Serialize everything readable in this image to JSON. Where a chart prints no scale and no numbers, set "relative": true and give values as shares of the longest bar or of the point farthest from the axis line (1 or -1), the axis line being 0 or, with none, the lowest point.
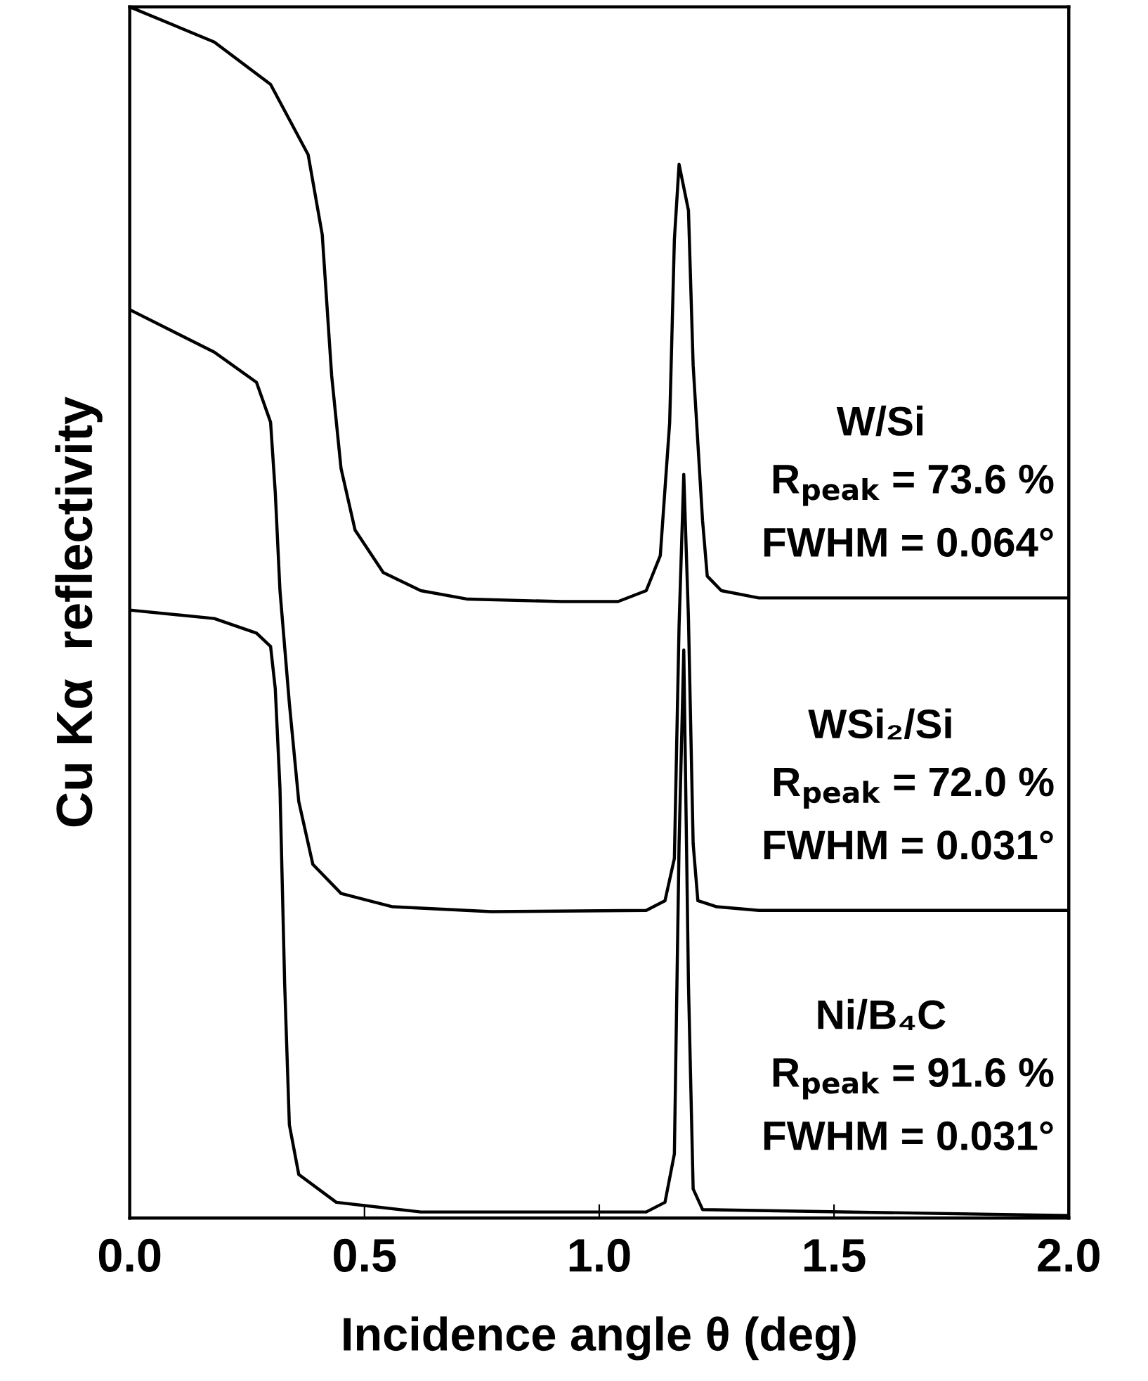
{
  "chart_data": {
    "type": "line",
    "relative": true,
    "xlabel": "Incidence angle θ (deg)",
    "ylabel": "Cu Kα  reflectivity",
    "xlim": [
      0,
      2.0
    ],
    "xticks": [
      {
        "value": 0,
        "label": "0.0"
      },
      0.5,
      {
        "value": 1,
        "label": "1.0"
      },
      1.5,
      {
        "value": 2,
        "label": "2.0"
      }
    ],
    "grid": false,
    "legend": false,
    "marker": "none",
    "line_style": "solid",
    "tick_labels": "x",
    "annotations": [
      "W/Si",
      "R$_{peak}$ = 73.6 %",
      "FWHM = 0.064°",
      "WSi₂/Si",
      "R$_{peak}$ = 72.0 %",
      "FWHM = 0.031°",
      "Ni/B₄C",
      "R$_{peak}$ = 91.6 %",
      "FWHM = 0.031°"
    ],
    "series": [
      {
        "color": "#000000",
        "x": [
          0,
          0.18,
          0.3,
          0.38,
          0.41,
          0.43,
          0.45,
          0.48,
          0.54,
          0.62,
          0.72,
          0.92,
          1.04,
          1.1,
          1.13,
          1.15,
          1.16,
          1.17,
          1.19,
          1.2,
          1.22,
          1.23,
          1.26,
          1.34,
          2.0
        ],
        "values": [
          1.0,
          0.971,
          0.936,
          0.878,
          0.812,
          0.696,
          0.619,
          0.568,
          0.533,
          0.518,
          0.511,
          0.509,
          0.509,
          0.518,
          0.547,
          0.657,
          0.808,
          0.87,
          0.832,
          0.704,
          0.576,
          0.53,
          0.518,
          0.512,
          0.512
        ]
      },
      {
        "color": "#000000",
        "x": [
          0,
          0.18,
          0.27,
          0.3,
          0.31,
          0.32,
          0.34,
          0.36,
          0.39,
          0.45,
          0.56,
          0.77,
          1.1,
          1.14,
          1.16,
          1.17,
          1.18,
          1.19,
          1.2,
          1.21,
          1.25,
          1.34,
          2.0
        ],
        "values": [
          0.75,
          0.715,
          0.69,
          0.657,
          0.599,
          0.518,
          0.425,
          0.344,
          0.292,
          0.268,
          0.257,
          0.253,
          0.254,
          0.262,
          0.297,
          0.489,
          0.614,
          0.495,
          0.309,
          0.262,
          0.257,
          0.254,
          0.254
        ]
      },
      {
        "color": "#000000",
        "x": [
          0,
          0.18,
          0.27,
          0.3,
          0.31,
          0.32,
          0.33,
          0.34,
          0.36,
          0.44,
          0.62,
          1.1,
          1.14,
          1.16,
          1.17,
          1.18,
          1.19,
          1.2,
          1.22,
          2.0
        ],
        "values": [
          0.502,
          0.495,
          0.483,
          0.472,
          0.437,
          0.355,
          0.193,
          0.077,
          0.036,
          0.013,
          0.005,
          0.005,
          0.013,
          0.053,
          0.309,
          0.469,
          0.193,
          0.024,
          0.007,
          0.002
        ]
      }
    ]
  }
}
